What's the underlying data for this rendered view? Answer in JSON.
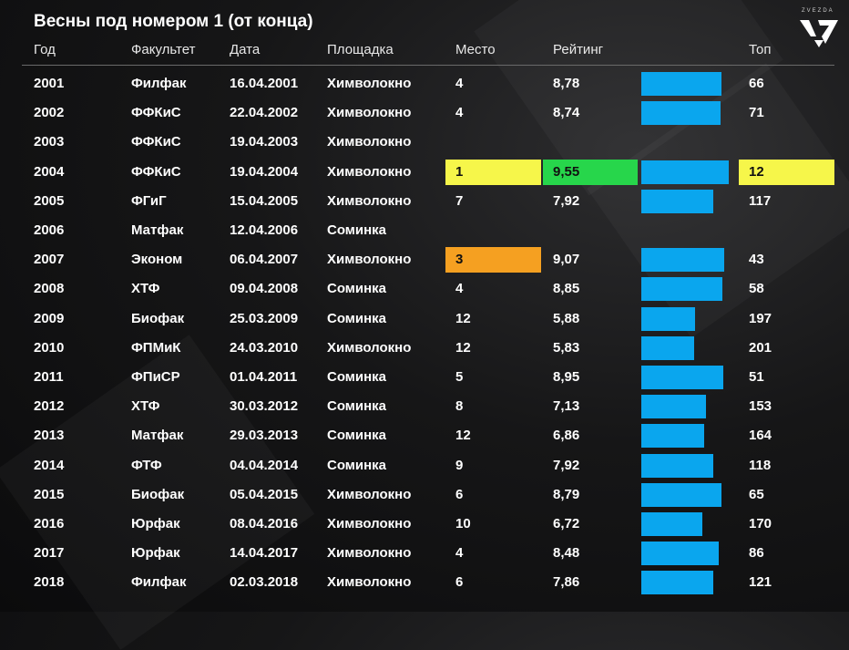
{
  "title": "Весны под номером 1 (от конца)",
  "brand": "ZVEZDA",
  "columns": {
    "year": "Год",
    "faculty": "Факультет",
    "date": "Дата",
    "venue": "Площадка",
    "place": "Место",
    "rating": "Рейтинг",
    "top": "Топ"
  },
  "colors": {
    "bar": "#0aa6ee",
    "highlight_yellow": "#f6f64a",
    "highlight_green": "#27d64b",
    "highlight_orange": "#f5a021"
  },
  "chart_data": {
    "type": "table",
    "title": "Весны под номером 1 (от конца)",
    "rating_bar_max": 10,
    "rows": [
      {
        "year": "2001",
        "faculty": "Филфак",
        "date": "16.04.2001",
        "venue": "Химволокно",
        "place": "4",
        "rating": "8,78",
        "rating_value": 8.78,
        "top": "66"
      },
      {
        "year": "2002",
        "faculty": "ФФКиС",
        "date": "22.04.2002",
        "venue": "Химволокно",
        "place": "4",
        "rating": "8,74",
        "rating_value": 8.74,
        "top": "71"
      },
      {
        "year": "2003",
        "faculty": "ФФКиС",
        "date": "19.04.2003",
        "venue": "Химволокно",
        "place": "",
        "rating": "",
        "rating_value": null,
        "top": ""
      },
      {
        "year": "2004",
        "faculty": "ФФКиС",
        "date": "19.04.2004",
        "venue": "Химволокно",
        "place": "1",
        "rating": "9,55",
        "rating_value": 9.55,
        "top": "12",
        "highlight_place": "yellow",
        "highlight_rating": "green",
        "highlight_top": "yellow"
      },
      {
        "year": "2005",
        "faculty": "ФГиГ",
        "date": "15.04.2005",
        "venue": "Химволокно",
        "place": "7",
        "rating": "7,92",
        "rating_value": 7.92,
        "top": "117"
      },
      {
        "year": "2006",
        "faculty": "Матфак",
        "date": "12.04.2006",
        "venue": "Соминка",
        "place": "",
        "rating": "",
        "rating_value": null,
        "top": ""
      },
      {
        "year": "2007",
        "faculty": "Эконом",
        "date": "06.04.2007",
        "venue": "Химволокно",
        "place": "3",
        "rating": "9,07",
        "rating_value": 9.07,
        "top": "43",
        "highlight_place": "orange"
      },
      {
        "year": "2008",
        "faculty": "ХТФ",
        "date": "09.04.2008",
        "venue": "Соминка",
        "place": "4",
        "rating": "8,85",
        "rating_value": 8.85,
        "top": "58"
      },
      {
        "year": "2009",
        "faculty": "Биофак",
        "date": "25.03.2009",
        "venue": "Соминка",
        "place": "12",
        "rating": "5,88",
        "rating_value": 5.88,
        "top": "197"
      },
      {
        "year": "2010",
        "faculty": "ФПМиК",
        "date": "24.03.2010",
        "venue": "Химволокно",
        "place": "12",
        "rating": "5,83",
        "rating_value": 5.83,
        "top": "201"
      },
      {
        "year": "2011",
        "faculty": "ФПиСР",
        "date": "01.04.2011",
        "venue": "Соминка",
        "place": "5",
        "rating": "8,95",
        "rating_value": 8.95,
        "top": "51"
      },
      {
        "year": "2012",
        "faculty": "ХТФ",
        "date": "30.03.2012",
        "venue": "Соминка",
        "place": "8",
        "rating": "7,13",
        "rating_value": 7.13,
        "top": "153"
      },
      {
        "year": "2013",
        "faculty": "Матфак",
        "date": "29.03.2013",
        "venue": "Соминка",
        "place": "12",
        "rating": "6,86",
        "rating_value": 6.86,
        "top": "164"
      },
      {
        "year": "2014",
        "faculty": "ФТФ",
        "date": "04.04.2014",
        "venue": "Соминка",
        "place": "9",
        "rating": "7,92",
        "rating_value": 7.92,
        "top": "118"
      },
      {
        "year": "2015",
        "faculty": "Биофак",
        "date": "05.04.2015",
        "venue": "Химволокно",
        "place": "6",
        "rating": "8,79",
        "rating_value": 8.79,
        "top": "65"
      },
      {
        "year": "2016",
        "faculty": "Юрфак",
        "date": "08.04.2016",
        "venue": "Химволокно",
        "place": "10",
        "rating": "6,72",
        "rating_value": 6.72,
        "top": "170"
      },
      {
        "year": "2017",
        "faculty": "Юрфак",
        "date": "14.04.2017",
        "venue": "Химволокно",
        "place": "4",
        "rating": "8,48",
        "rating_value": 8.48,
        "top": "86"
      },
      {
        "year": "2018",
        "faculty": "Филфак",
        "date": "02.03.2018",
        "venue": "Химволокно",
        "place": "6",
        "rating": "7,86",
        "rating_value": 7.86,
        "top": "121"
      }
    ]
  }
}
